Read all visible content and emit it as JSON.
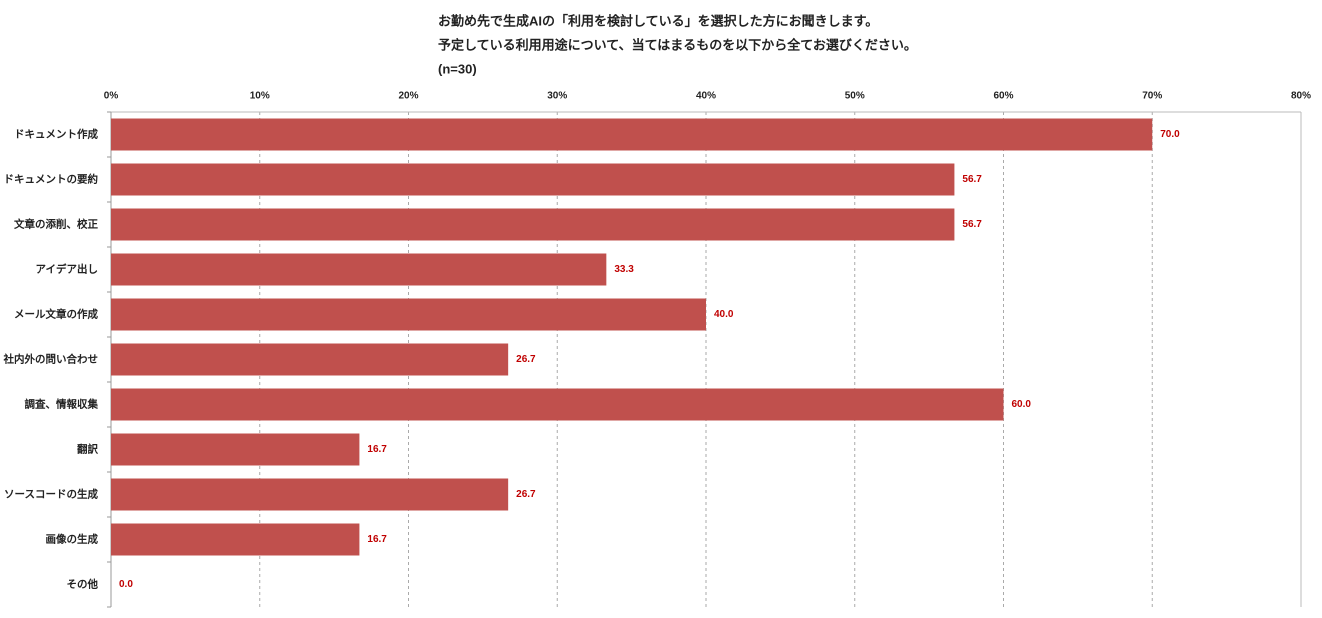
{
  "chart_data": {
    "type": "barh",
    "title_lines": [
      "お勤め先で生成AIの「利用を検討している」を選択した方にお聞きします。",
      "予定している利用用途について、当てはまるものを以下から全てお選びください。",
      "(n=30)"
    ],
    "categories": [
      "ドキュメント作成",
      "ドキュメントの要約",
      "文章の添削、校正",
      "アイデア出し",
      "メール文章の作成",
      "社内外の問い合わせ",
      "調査、情報収集",
      "翻訳",
      "ソースコードの生成",
      "画像の生成",
      "その他"
    ],
    "values": [
      70.0,
      56.7,
      56.7,
      33.3,
      40.0,
      26.7,
      60.0,
      16.7,
      26.7,
      16.7,
      0.0
    ],
    "value_labels": [
      "70.0",
      "56.7",
      "56.7",
      "33.3",
      "40.0",
      "26.7",
      "60.0",
      "16.7",
      "26.7",
      "16.7",
      "0.0"
    ],
    "color": "#c0504d",
    "xlim": [
      0,
      80
    ],
    "xticks": [
      {
        "value": 0,
        "label": "0%"
      },
      {
        "value": 10,
        "label": "10%"
      },
      {
        "value": 20,
        "label": "20%"
      },
      {
        "value": 30,
        "label": "30%"
      },
      {
        "value": 40,
        "label": "40%"
      },
      {
        "value": 50,
        "label": "50%"
      },
      {
        "value": 60,
        "label": "60%"
      },
      {
        "value": 70,
        "label": "70%"
      },
      {
        "value": 80,
        "label": "80%"
      }
    ],
    "grid": true
  }
}
